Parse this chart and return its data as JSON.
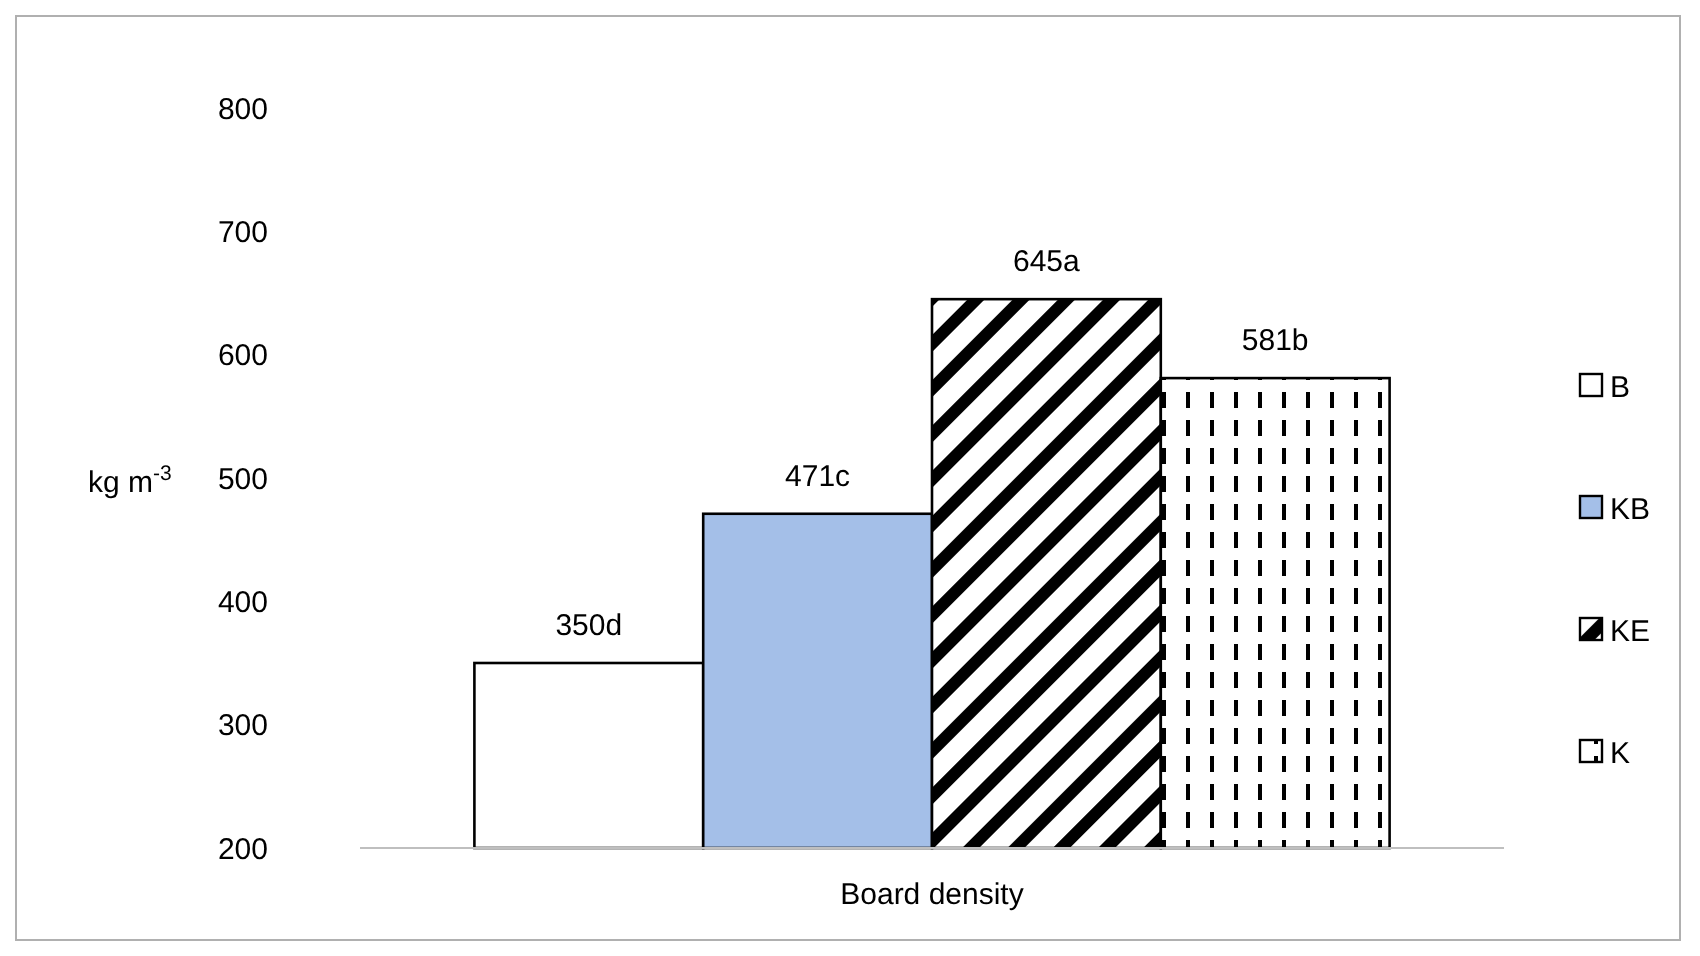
{
  "chart_data": {
    "type": "bar",
    "ylabel": "kg m$^{-3}$",
    "categories": [
      "Board density"
    ],
    "series": [
      {
        "name": "B",
        "color": "#ffffff",
        "values": [
          350
        ],
        "value_labels": [
          "350d"
        ]
      },
      {
        "name": "KB",
        "color": "#a4bfe8",
        "values": [
          471
        ],
        "value_labels": [
          "471c"
        ]
      },
      {
        "name": "KE",
        "color": "#000000",
        "values": [
          645
        ],
        "value_labels": [
          "645a"
        ]
      },
      {
        "name": "K",
        "color": "#000000",
        "values": [
          581
        ],
        "value_labels": [
          "581b"
        ]
      }
    ],
    "ylim": [
      200,
      800
    ],
    "yticks": [
      200,
      300,
      400,
      500,
      600,
      700,
      800
    ],
    "grid": false,
    "legend": "right"
  }
}
